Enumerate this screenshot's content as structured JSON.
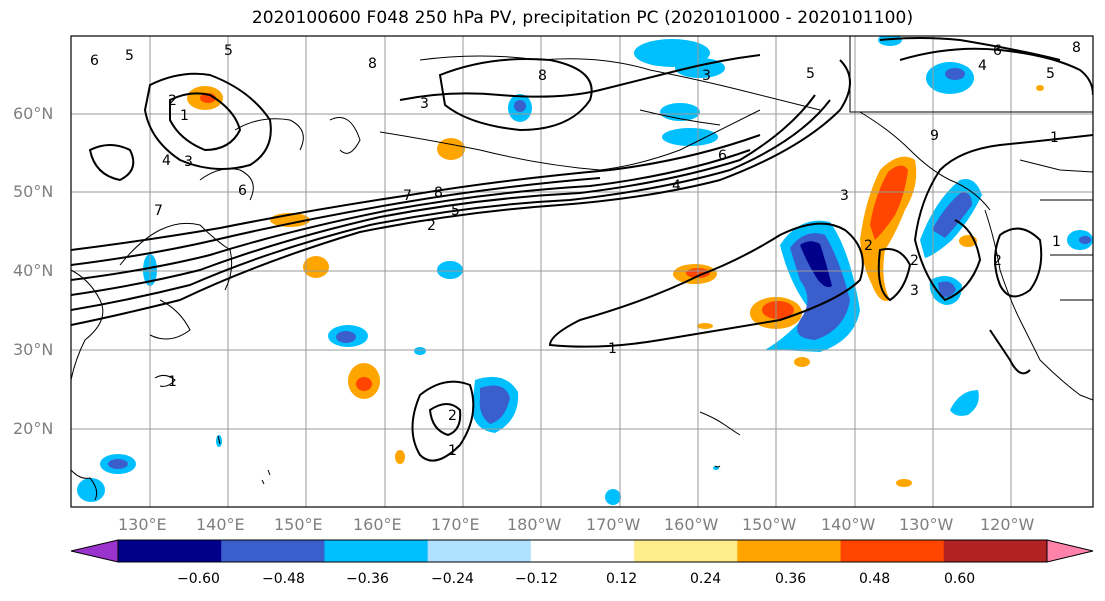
{
  "title": "2020100600 F048 250 hPa PV, precipitation PC (2020101000 - 2020101100)",
  "lat_labels": [
    "60°N",
    "50°N",
    "40°N",
    "30°N",
    "20°N"
  ],
  "lon_labels": [
    "130°E",
    "140°E",
    "150°E",
    "160°E",
    "170°E",
    "180°W",
    "170°W",
    "160°W",
    "150°W",
    "140°W",
    "130°W",
    "120°W"
  ],
  "colorbar": {
    "colors": [
      "#9a32cd",
      "#00008b",
      "#3a5fcd",
      "#00bfff",
      "#b0e2ff",
      "#ffffff",
      "#ffec8b",
      "#ffa500",
      "#ff4500",
      "#b22222",
      "#ff82ab"
    ],
    "tick_labels": [
      "−0.60",
      "−0.48",
      "−0.36",
      "−0.24",
      "−0.12",
      "0.12",
      "0.24",
      "0.36",
      "0.48",
      "0.60"
    ]
  },
  "contour_labels": [
    "5",
    "5",
    "6",
    "8",
    "3",
    "2",
    "1",
    "3",
    "4",
    "6",
    "7",
    "8",
    "2",
    "5",
    "1",
    "3",
    "4",
    "6",
    "5",
    "8",
    "7",
    "2",
    "1",
    "3",
    "2",
    "4",
    "1",
    "8",
    "9",
    "6",
    "5",
    "1",
    "2",
    "2",
    "3",
    "1"
  ]
}
